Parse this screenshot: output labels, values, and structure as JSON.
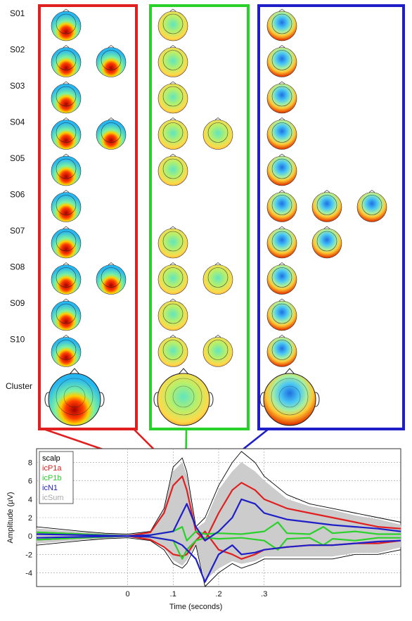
{
  "rows": [
    "S01",
    "S02",
    "S03",
    "S04",
    "S05",
    "S06",
    "S07",
    "S08",
    "S09",
    "S10"
  ],
  "cluster_label": "Cluster",
  "panel_colors": {
    "icP1a": "#e02020",
    "icP1b": "#2ad12a",
    "icN1": "#1f1fc8"
  },
  "topomap_grid": [
    {
      "panel": "icP1a",
      "maps": [
        [
          1
        ],
        [
          1,
          1
        ],
        [
          1
        ],
        [
          1,
          1
        ],
        [
          1
        ],
        [
          1
        ],
        [
          1
        ],
        [
          1,
          1
        ],
        [
          1
        ],
        [
          1
        ]
      ]
    },
    {
      "panel": "icP1b",
      "maps": [
        [
          1
        ],
        [
          1
        ],
        [
          1
        ],
        [
          1,
          1
        ],
        [
          1
        ],
        [],
        [
          1
        ],
        [
          1,
          1
        ],
        [
          1
        ],
        [
          1,
          1
        ]
      ]
    },
    {
      "panel": "icN1",
      "maps": [
        [
          1
        ],
        [
          1
        ],
        [
          1
        ],
        [
          1
        ],
        [
          1
        ],
        [
          1,
          1,
          1
        ],
        [
          1,
          1
        ],
        [
          1
        ],
        [
          1
        ],
        [
          1
        ]
      ]
    }
  ],
  "chart_data": {
    "type": "line",
    "xlabel": "Time (seconds)",
    "ylabel": "Amplitude (µV)",
    "xticks": [
      0,
      0.1,
      0.2,
      0.3
    ],
    "xtick_labels": [
      "0",
      ".1",
      ".2",
      ".3"
    ],
    "yticks": [
      -4,
      -2,
      0,
      2,
      4,
      6,
      8
    ],
    "xlim": [
      -0.2,
      0.6
    ],
    "ylim": [
      -5.5,
      9.5
    ],
    "grid": true,
    "legend_position": "top-left",
    "legend": [
      {
        "name": "scalp",
        "color": "#000000"
      },
      {
        "name": "icP1a",
        "color": "#e02020"
      },
      {
        "name": "icP1b",
        "color": "#2ad12a"
      },
      {
        "name": "icN1",
        "color": "#1f1fc8"
      },
      {
        "name": "icSum",
        "color": "#a9a9a9"
      }
    ],
    "series": [
      {
        "name": "scalp",
        "envelope": "upper",
        "x": [
          -0.2,
          -0.1,
          -0.05,
          0,
          0.05,
          0.08,
          0.1,
          0.12,
          0.13,
          0.15,
          0.17,
          0.2,
          0.23,
          0.25,
          0.28,
          0.3,
          0.35,
          0.4,
          0.45,
          0.5,
          0.55,
          0.6
        ],
        "y": [
          1.0,
          0.5,
          0.3,
          0.2,
          0.5,
          3.0,
          7.5,
          8.5,
          7.0,
          1.0,
          2.0,
          5.5,
          8.0,
          9.2,
          8.0,
          6.5,
          4.5,
          3.5,
          3.0,
          2.5,
          2.0,
          1.5
        ]
      },
      {
        "name": "scalp",
        "envelope": "lower",
        "x": [
          -0.2,
          -0.1,
          -0.05,
          0,
          0.05,
          0.08,
          0.1,
          0.12,
          0.13,
          0.15,
          0.17,
          0.2,
          0.23,
          0.25,
          0.28,
          0.3,
          0.35,
          0.4,
          0.45,
          0.5,
          0.55,
          0.6
        ],
        "y": [
          -1.0,
          -0.5,
          -0.3,
          -0.2,
          -0.5,
          -1.5,
          -3.0,
          -3.5,
          -3.0,
          -1.0,
          -5.5,
          -4.0,
          -3.0,
          -3.5,
          -3.0,
          -2.5,
          -2.5,
          -2.5,
          -2.5,
          -2.0,
          -2.0,
          -1.5
        ]
      },
      {
        "name": "icP1a",
        "envelope": "upper",
        "x": [
          -0.2,
          -0.1,
          -0.05,
          0,
          0.05,
          0.08,
          0.1,
          0.12,
          0.13,
          0.15,
          0.17,
          0.2,
          0.23,
          0.25,
          0.28,
          0.3,
          0.35,
          0.4,
          0.45,
          0.5,
          0.55,
          0.6
        ],
        "y": [
          0.4,
          0.2,
          0.1,
          0.0,
          0.4,
          2.5,
          5.5,
          6.5,
          5.0,
          0.5,
          -0.5,
          2.5,
          5.0,
          5.8,
          5.0,
          4.0,
          3.0,
          2.5,
          2.0,
          1.5,
          1.0,
          0.8
        ]
      },
      {
        "name": "icP1a",
        "envelope": "lower",
        "x": [
          -0.2,
          -0.1,
          -0.05,
          0,
          0.05,
          0.08,
          0.1,
          0.12,
          0.13,
          0.15,
          0.17,
          0.2,
          0.23,
          0.25,
          0.28,
          0.3,
          0.35,
          0.4,
          0.45,
          0.5,
          0.55,
          0.6
        ],
        "y": [
          -0.4,
          -0.2,
          -0.1,
          0.0,
          -0.4,
          -1.2,
          -2.0,
          -2.2,
          -2.0,
          -0.5,
          0.5,
          -1.5,
          -2.0,
          -2.5,
          -2.0,
          -1.5,
          -1.2,
          -1.0,
          -1.0,
          -0.8,
          -0.8,
          -0.5
        ]
      },
      {
        "name": "icP1b",
        "envelope": "upper",
        "x": [
          -0.2,
          -0.1,
          0,
          0.05,
          0.1,
          0.12,
          0.13,
          0.15,
          0.17,
          0.2,
          0.25,
          0.3,
          0.33,
          0.35,
          0.4,
          0.43,
          0.45,
          0.5,
          0.55,
          0.6
        ],
        "y": [
          -0.4,
          -0.2,
          0,
          0.1,
          0.5,
          1.0,
          -0.5,
          0.5,
          0.2,
          0.3,
          0.2,
          0.5,
          1.5,
          0.3,
          0.2,
          1.0,
          0.3,
          0.5,
          0.2,
          0.2
        ]
      },
      {
        "name": "icP1b",
        "envelope": "lower",
        "x": [
          -0.2,
          -0.1,
          0,
          0.05,
          0.1,
          0.12,
          0.13,
          0.15,
          0.17,
          0.2,
          0.25,
          0.3,
          0.33,
          0.35,
          0.4,
          0.43,
          0.45,
          0.5,
          0.55,
          0.6
        ],
        "y": [
          0.4,
          0.2,
          0,
          -0.1,
          -0.5,
          -2.5,
          -1.5,
          -0.5,
          -0.2,
          -0.3,
          -0.2,
          -0.5,
          -1.5,
          -0.3,
          -0.2,
          -1.0,
          -0.3,
          -0.5,
          -0.2,
          -0.2
        ]
      },
      {
        "name": "icN1",
        "envelope": "upper",
        "x": [
          -0.2,
          -0.1,
          0,
          0.05,
          0.1,
          0.12,
          0.13,
          0.15,
          0.17,
          0.2,
          0.23,
          0.25,
          0.28,
          0.3,
          0.35,
          0.4,
          0.45,
          0.5,
          0.55,
          0.6
        ],
        "y": [
          0.2,
          0.1,
          0.0,
          0.1,
          0.5,
          2.5,
          3.5,
          1.0,
          -0.5,
          0.5,
          2.0,
          4.0,
          3.5,
          2.5,
          1.8,
          1.5,
          1.2,
          1.0,
          0.8,
          0.5
        ]
      },
      {
        "name": "icN1",
        "envelope": "lower",
        "x": [
          -0.2,
          -0.1,
          0,
          0.05,
          0.1,
          0.12,
          0.13,
          0.15,
          0.17,
          0.2,
          0.23,
          0.25,
          0.28,
          0.3,
          0.35,
          0.4,
          0.45,
          0.5,
          0.55,
          0.6
        ],
        "y": [
          -0.2,
          -0.1,
          0.0,
          -0.1,
          -0.5,
          -1.0,
          -1.5,
          -2.5,
          -5.0,
          -2.0,
          -1.0,
          -2.0,
          -1.8,
          -1.5,
          -1.2,
          -1.0,
          -1.0,
          -0.8,
          -0.6,
          -0.5
        ]
      },
      {
        "name": "icSum",
        "fill": true,
        "x": [
          -0.2,
          -0.1,
          0,
          0.05,
          0.08,
          0.1,
          0.12,
          0.13,
          0.15,
          0.17,
          0.2,
          0.23,
          0.25,
          0.28,
          0.3,
          0.35,
          0.4,
          0.45,
          0.5,
          0.55,
          0.6
        ],
        "upper": [
          0.8,
          0.4,
          0.1,
          0.4,
          2.8,
          7.0,
          8.0,
          6.5,
          0.8,
          1.5,
          5.0,
          7.0,
          8.0,
          7.0,
          6.0,
          4.0,
          3.2,
          2.8,
          2.2,
          1.8,
          1.2
        ],
        "lower": [
          -0.8,
          -0.4,
          -0.1,
          -0.4,
          -1.2,
          -2.6,
          -3.2,
          -2.6,
          -0.8,
          -4.8,
          -3.5,
          -2.7,
          -3.0,
          -2.7,
          -2.2,
          -2.2,
          -2.2,
          -2.2,
          -1.8,
          -1.8,
          -1.2
        ]
      }
    ]
  }
}
